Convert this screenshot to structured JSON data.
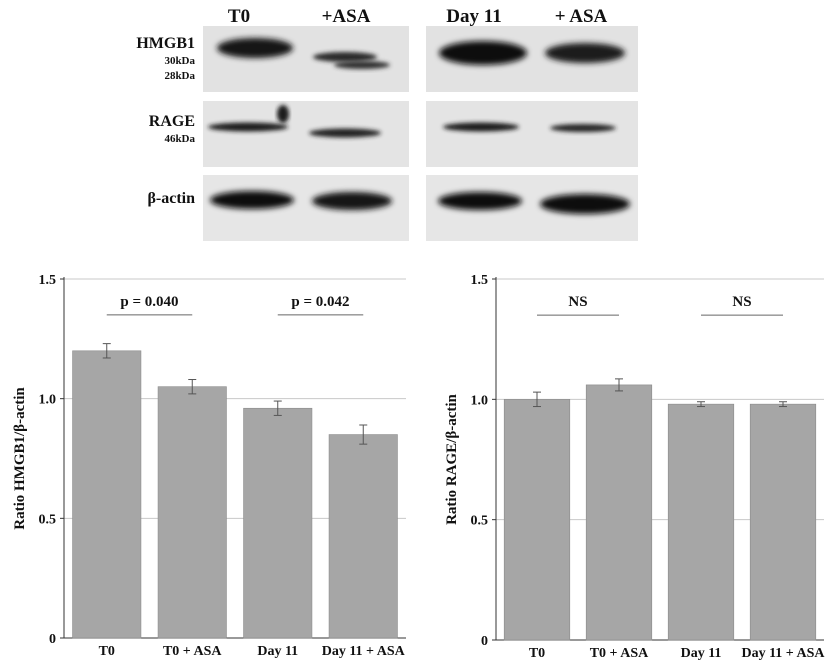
{
  "blot": {
    "lanes": [
      "T0",
      "+ASA",
      "Day 11",
      "+ ASA"
    ],
    "rows": [
      {
        "label": "HMGB1",
        "markers": [
          "30kDa",
          "28kDa"
        ]
      },
      {
        "label": "RAGE",
        "markers": [
          "46kDa"
        ]
      },
      {
        "label": "β-actin",
        "markers": []
      }
    ]
  },
  "chart_data": [
    {
      "type": "bar",
      "categories": [
        "T0",
        "T0 + ASA",
        "Day 11",
        "Day 11 + ASA"
      ],
      "values": [
        1.2,
        1.05,
        0.96,
        0.85
      ],
      "errors": [
        0.03,
        0.03,
        0.03,
        0.04
      ],
      "xlabel": "",
      "ylabel": "Ratio HMGB1/β-actin",
      "ylim": [
        0,
        1.5
      ],
      "yticks": [
        0,
        0.5,
        1.0,
        1.5
      ],
      "ytick_labels": [
        "0",
        "0.5",
        "1.0",
        "1.5"
      ],
      "grid": true,
      "bar_color": "#a6a6a6",
      "annotations": [
        {
          "text": "p = 0.040",
          "between": [
            0,
            1
          ],
          "y": 1.35
        },
        {
          "text": "p = 0.042",
          "between": [
            2,
            3
          ],
          "y": 1.35
        }
      ]
    },
    {
      "type": "bar",
      "categories": [
        "T0",
        "T0 + ASA",
        "Day 11",
        "Day 11 + ASA"
      ],
      "values": [
        1.0,
        1.06,
        0.98,
        0.98
      ],
      "errors": [
        0.03,
        0.025,
        0.01,
        0.01
      ],
      "xlabel": "",
      "ylabel": "Ratio RAGE/β-actin",
      "ylim": [
        0,
        1.5
      ],
      "yticks": [
        0,
        0.5,
        1.0,
        1.5
      ],
      "ytick_labels": [
        "0",
        "0.5",
        "1.0",
        "1.5"
      ],
      "grid": true,
      "bar_color": "#a6a6a6",
      "annotations": [
        {
          "text": "NS",
          "between": [
            0,
            1
          ],
          "y": 1.35
        },
        {
          "text": "NS",
          "between": [
            2,
            3
          ],
          "y": 1.35
        }
      ]
    }
  ]
}
